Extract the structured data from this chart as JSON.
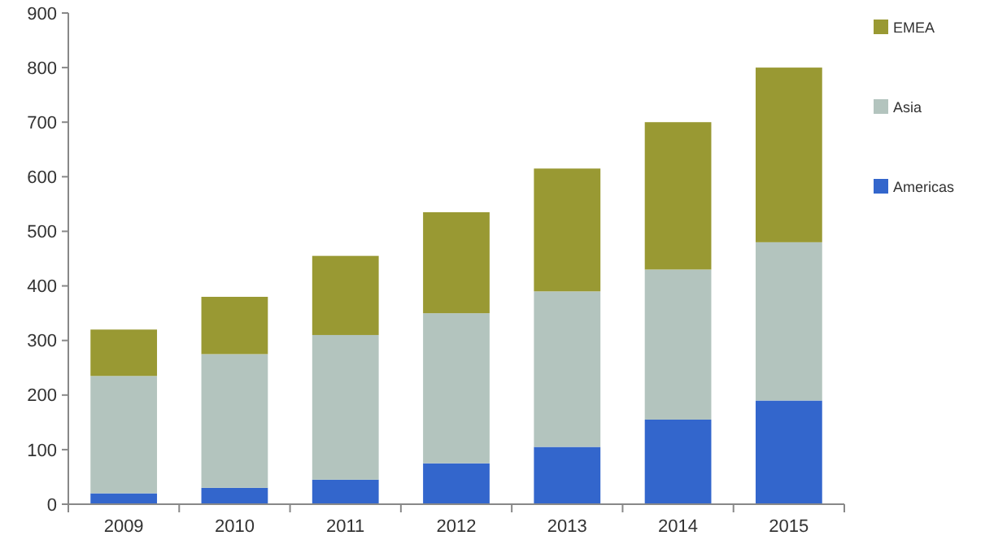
{
  "chart_data": {
    "type": "bar",
    "stacked": true,
    "categories": [
      "2009",
      "2010",
      "2011",
      "2012",
      "2013",
      "2014",
      "2015"
    ],
    "series": [
      {
        "name": "Americas",
        "color": "#3366cc",
        "values": [
          20,
          30,
          45,
          75,
          105,
          155,
          190
        ]
      },
      {
        "name": "Asia",
        "color": "#b3c4be",
        "values": [
          215,
          245,
          265,
          275,
          285,
          275,
          290
        ]
      },
      {
        "name": "EMEA",
        "color": "#999933",
        "values": [
          85,
          105,
          145,
          185,
          225,
          270,
          320
        ]
      }
    ],
    "ylim": [
      0,
      900
    ],
    "yticks": [
      0,
      100,
      200,
      300,
      400,
      500,
      600,
      700,
      800,
      900
    ],
    "grid": false,
    "legend": "right"
  }
}
